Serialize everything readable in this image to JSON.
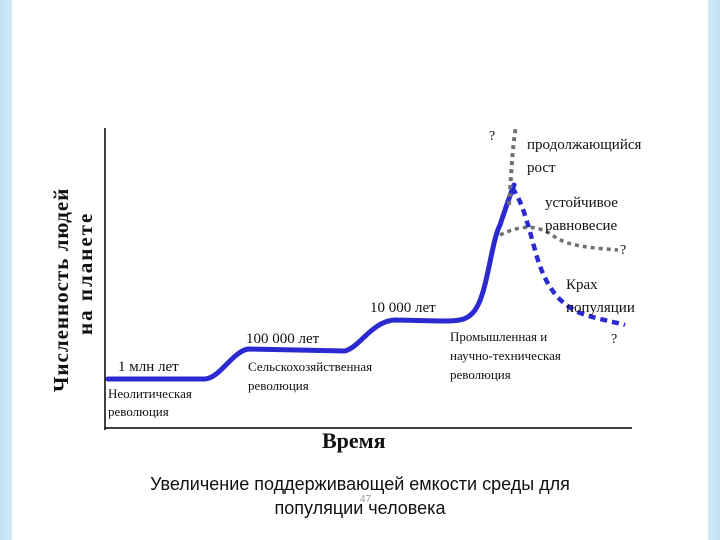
{
  "colors": {
    "main_curve": "#2a2ad0",
    "stable_curve": "#707070",
    "axis": "#000000"
  },
  "axes": {
    "y_label_line1": "Численность людей",
    "y_label_line2": "на планете",
    "x_label": "Время"
  },
  "labels": {
    "t1": "1 млн лет",
    "t1_event_line1": "Неолитическая",
    "t1_event_line2": "революция",
    "t2": "100 000 лет",
    "t2_event_line1": "Сельскохозяйственная",
    "t2_event_line2": "революция",
    "t3": "10 000 лет",
    "t3_event_line1": "Промышленная и",
    "t3_event_line2": "научно-техническая",
    "t3_event_line3": "революция",
    "q_growth": "?",
    "q_stable": "?",
    "q_crash": "?",
    "growth_line1": "продолжающийся",
    "growth_line2": "рост",
    "stable_line1": "устойчивое",
    "stable_line2": "равновесие",
    "crash_line1": "Крах",
    "crash_line2": "популяции"
  },
  "caption": {
    "line1": "Увеличение поддерживающей емкости среды для",
    "line2": "популяции человека"
  },
  "page_number": "47"
}
